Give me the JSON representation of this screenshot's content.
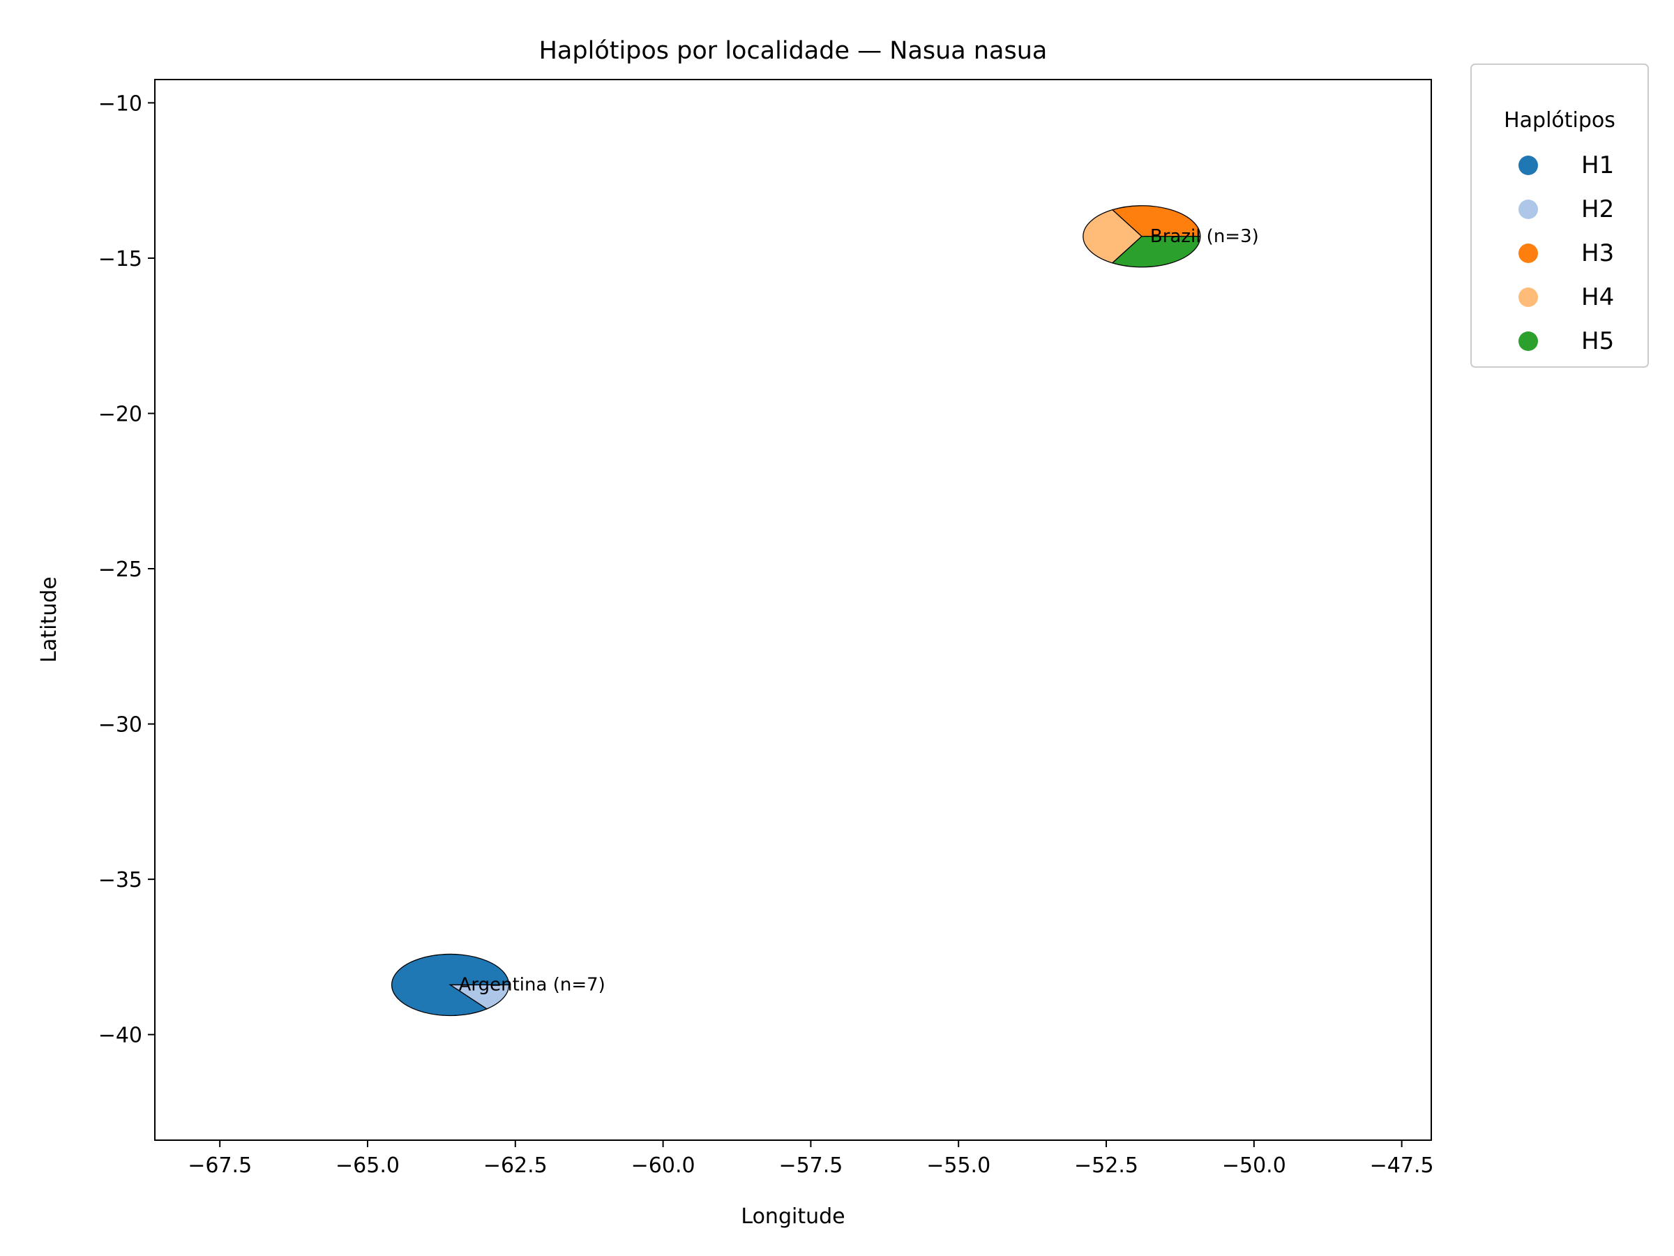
{
  "chart_data": {
    "type": "scatter",
    "subtype": "pie-markers-on-map",
    "title": "Haplótipos por localidade — Nasua nasua",
    "xlabel": "Longitude",
    "ylabel": "Latitude",
    "xlim": [
      -68.6,
      -47.0
    ],
    "ylim": [
      -43.4,
      -9.25
    ],
    "xticks": [
      -67.5,
      -65.0,
      -62.5,
      -60.0,
      -57.5,
      -55.0,
      -52.5,
      -50.0,
      -47.5
    ],
    "yticks": [
      -10,
      -15,
      -20,
      -25,
      -30,
      -35,
      -40
    ],
    "grid": false,
    "legend": {
      "title": "Haplótipos",
      "placement": "outside-top-right",
      "entries": [
        {
          "label": "H1",
          "color": "#1f77b4"
        },
        {
          "label": "H2",
          "color": "#aec7e8"
        },
        {
          "label": "H3",
          "color": "#ff7f0e"
        },
        {
          "label": "H4",
          "color": "#ffbb78"
        },
        {
          "label": "H5",
          "color": "#2ca02c"
        }
      ]
    },
    "localities": [
      {
        "label": "Argentina (n=7)",
        "lon": -63.6,
        "lat": -38.4,
        "slices": [
          {
            "haplotype": "H1",
            "count": 6
          },
          {
            "haplotype": "H2",
            "count": 1
          }
        ]
      },
      {
        "label": "Brazil (n=3)",
        "lon": -51.9,
        "lat": -14.3,
        "slices": [
          {
            "haplotype": "H3",
            "count": 1
          },
          {
            "haplotype": "H4",
            "count": 1
          },
          {
            "haplotype": "H5",
            "count": 1
          }
        ]
      }
    ]
  }
}
